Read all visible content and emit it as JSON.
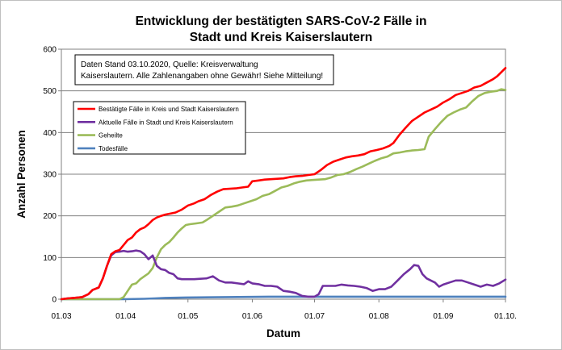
{
  "chart_data": {
    "type": "line",
    "title_lines": [
      "Entwicklung der bestätigten SARS-CoV-2 Fälle in",
      "Stadt und Kreis Kaiserslautern"
    ],
    "xlabel": "Datum",
    "ylabel": "Anzahl Personen",
    "ylim": [
      0,
      600
    ],
    "yticks": [
      0,
      100,
      200,
      300,
      400,
      500,
      600
    ],
    "xlim": [
      0,
      214
    ],
    "xticks": [
      {
        "label": "01.03",
        "day": 0
      },
      {
        "label": "01.04",
        "day": 31
      },
      {
        "label": "01.05",
        "day": 61
      },
      {
        "label": "01.06",
        "day": 92
      },
      {
        "label": "01.07",
        "day": 122
      },
      {
        "label": "01.08",
        "day": 153
      },
      {
        "label": "01.09",
        "day": 184
      },
      {
        "label": "01.10.",
        "day": 214
      }
    ],
    "grid": "horizontal",
    "note_lines": [
      "Daten Stand 03.10.2020, Quelle: Kreisverwaltung",
      "Kaiserslautern. Alle Zahlenangaben ohne Gewähr! Siehe Mitteilung!"
    ],
    "legend_position": "top-left",
    "series": [
      {
        "name": "Bestätigte Fälle in Kreis und Stadt Kaiserslautern",
        "color": "#ff0000",
        "points": [
          [
            0,
            0
          ],
          [
            3,
            2
          ],
          [
            6,
            3
          ],
          [
            10,
            5
          ],
          [
            13,
            12
          ],
          [
            15,
            22
          ],
          [
            18,
            28
          ],
          [
            20,
            50
          ],
          [
            22,
            80
          ],
          [
            24,
            108
          ],
          [
            26,
            115
          ],
          [
            28,
            118
          ],
          [
            30,
            130
          ],
          [
            32,
            142
          ],
          [
            34,
            148
          ],
          [
            36,
            160
          ],
          [
            38,
            168
          ],
          [
            40,
            172
          ],
          [
            42,
            180
          ],
          [
            44,
            190
          ],
          [
            46,
            196
          ],
          [
            48,
            200
          ],
          [
            50,
            203
          ],
          [
            52,
            205
          ],
          [
            55,
            208
          ],
          [
            58,
            215
          ],
          [
            61,
            225
          ],
          [
            64,
            230
          ],
          [
            66,
            235
          ],
          [
            69,
            240
          ],
          [
            72,
            250
          ],
          [
            75,
            258
          ],
          [
            78,
            264
          ],
          [
            81,
            265
          ],
          [
            84,
            266
          ],
          [
            87,
            268
          ],
          [
            90,
            270
          ],
          [
            92,
            283
          ],
          [
            95,
            285
          ],
          [
            98,
            287
          ],
          [
            101,
            288
          ],
          [
            104,
            289
          ],
          [
            107,
            290
          ],
          [
            110,
            293
          ],
          [
            113,
            295
          ],
          [
            116,
            296
          ],
          [
            119,
            298
          ],
          [
            122,
            300
          ],
          [
            125,
            310
          ],
          [
            128,
            322
          ],
          [
            131,
            330
          ],
          [
            134,
            335
          ],
          [
            137,
            340
          ],
          [
            140,
            343
          ],
          [
            143,
            345
          ],
          [
            146,
            348
          ],
          [
            149,
            355
          ],
          [
            152,
            358
          ],
          [
            155,
            362
          ],
          [
            158,
            368
          ],
          [
            160,
            375
          ],
          [
            163,
            395
          ],
          [
            166,
            412
          ],
          [
            169,
            428
          ],
          [
            172,
            438
          ],
          [
            175,
            448
          ],
          [
            178,
            455
          ],
          [
            181,
            462
          ],
          [
            184,
            472
          ],
          [
            187,
            480
          ],
          [
            190,
            490
          ],
          [
            193,
            495
          ],
          [
            196,
            500
          ],
          [
            199,
            508
          ],
          [
            202,
            512
          ],
          [
            205,
            520
          ],
          [
            208,
            528
          ],
          [
            210,
            535
          ],
          [
            212,
            545
          ],
          [
            214,
            555
          ]
        ]
      },
      {
        "name": "Aktuelle Fälle in Stadt und Kreis Kaiserslautern",
        "color": "#7030a0",
        "points": [
          [
            0,
            0
          ],
          [
            3,
            2
          ],
          [
            6,
            3
          ],
          [
            10,
            5
          ],
          [
            13,
            12
          ],
          [
            15,
            22
          ],
          [
            18,
            28
          ],
          [
            20,
            50
          ],
          [
            22,
            80
          ],
          [
            24,
            105
          ],
          [
            26,
            113
          ],
          [
            28,
            114
          ],
          [
            30,
            116
          ],
          [
            32,
            114
          ],
          [
            34,
            115
          ],
          [
            36,
            117
          ],
          [
            38,
            115
          ],
          [
            40,
            108
          ],
          [
            42,
            96
          ],
          [
            44,
            105
          ],
          [
            46,
            80
          ],
          [
            48,
            72
          ],
          [
            50,
            70
          ],
          [
            52,
            63
          ],
          [
            54,
            60
          ],
          [
            56,
            50
          ],
          [
            58,
            48
          ],
          [
            61,
            48
          ],
          [
            64,
            48
          ],
          [
            67,
            49
          ],
          [
            70,
            50
          ],
          [
            73,
            55
          ],
          [
            76,
            45
          ],
          [
            79,
            40
          ],
          [
            82,
            40
          ],
          [
            85,
            38
          ],
          [
            88,
            36
          ],
          [
            90,
            43
          ],
          [
            92,
            38
          ],
          [
            95,
            36
          ],
          [
            98,
            32
          ],
          [
            101,
            32
          ],
          [
            104,
            30
          ],
          [
            107,
            20
          ],
          [
            110,
            18
          ],
          [
            113,
            15
          ],
          [
            116,
            8
          ],
          [
            119,
            6
          ],
          [
            122,
            6
          ],
          [
            124,
            12
          ],
          [
            126,
            32
          ],
          [
            129,
            32
          ],
          [
            132,
            32
          ],
          [
            135,
            35
          ],
          [
            138,
            33
          ],
          [
            141,
            32
          ],
          [
            144,
            30
          ],
          [
            147,
            27
          ],
          [
            150,
            20
          ],
          [
            153,
            24
          ],
          [
            156,
            24
          ],
          [
            159,
            30
          ],
          [
            162,
            45
          ],
          [
            165,
            60
          ],
          [
            168,
            72
          ],
          [
            170,
            82
          ],
          [
            172,
            80
          ],
          [
            174,
            60
          ],
          [
            176,
            50
          ],
          [
            178,
            45
          ],
          [
            180,
            40
          ],
          [
            182,
            30
          ],
          [
            184,
            35
          ],
          [
            187,
            40
          ],
          [
            190,
            45
          ],
          [
            193,
            45
          ],
          [
            196,
            40
          ],
          [
            199,
            35
          ],
          [
            202,
            30
          ],
          [
            205,
            35
          ],
          [
            208,
            32
          ],
          [
            211,
            38
          ],
          [
            214,
            47
          ]
        ]
      },
      {
        "name": "Geheilte",
        "color": "#9bbb59",
        "points": [
          [
            0,
            0
          ],
          [
            10,
            0
          ],
          [
            20,
            0
          ],
          [
            25,
            0
          ],
          [
            28,
            0
          ],
          [
            30,
            5
          ],
          [
            32,
            20
          ],
          [
            34,
            35
          ],
          [
            36,
            38
          ],
          [
            38,
            48
          ],
          [
            40,
            55
          ],
          [
            42,
            62
          ],
          [
            44,
            75
          ],
          [
            46,
            100
          ],
          [
            48,
            120
          ],
          [
            50,
            130
          ],
          [
            52,
            137
          ],
          [
            54,
            148
          ],
          [
            56,
            160
          ],
          [
            58,
            170
          ],
          [
            60,
            178
          ],
          [
            62,
            180
          ],
          [
            65,
            182
          ],
          [
            68,
            184
          ],
          [
            70,
            190
          ],
          [
            73,
            200
          ],
          [
            76,
            210
          ],
          [
            79,
            220
          ],
          [
            82,
            222
          ],
          [
            85,
            225
          ],
          [
            88,
            230
          ],
          [
            91,
            235
          ],
          [
            94,
            240
          ],
          [
            97,
            248
          ],
          [
            100,
            252
          ],
          [
            103,
            260
          ],
          [
            106,
            268
          ],
          [
            109,
            272
          ],
          [
            112,
            278
          ],
          [
            115,
            282
          ],
          [
            118,
            285
          ],
          [
            121,
            286
          ],
          [
            124,
            287
          ],
          [
            127,
            288
          ],
          [
            130,
            292
          ],
          [
            133,
            298
          ],
          [
            136,
            300
          ],
          [
            139,
            305
          ],
          [
            142,
            312
          ],
          [
            145,
            318
          ],
          [
            148,
            325
          ],
          [
            151,
            332
          ],
          [
            154,
            338
          ],
          [
            157,
            342
          ],
          [
            160,
            350
          ],
          [
            163,
            352
          ],
          [
            166,
            355
          ],
          [
            169,
            357
          ],
          [
            172,
            358
          ],
          [
            175,
            360
          ],
          [
            177,
            390
          ],
          [
            180,
            408
          ],
          [
            183,
            425
          ],
          [
            186,
            440
          ],
          [
            189,
            448
          ],
          [
            192,
            455
          ],
          [
            195,
            460
          ],
          [
            198,
            475
          ],
          [
            201,
            488
          ],
          [
            204,
            495
          ],
          [
            207,
            498
          ],
          [
            210,
            500
          ],
          [
            212,
            504
          ],
          [
            214,
            502
          ]
        ]
      },
      {
        "name": "Todesfälle",
        "color": "#4f81bd",
        "points": [
          [
            0,
            0
          ],
          [
            30,
            0
          ],
          [
            40,
            1
          ],
          [
            45,
            2
          ],
          [
            50,
            3
          ],
          [
            60,
            4
          ],
          [
            80,
            5
          ],
          [
            100,
            6
          ],
          [
            140,
            6
          ],
          [
            214,
            6
          ]
        ]
      }
    ]
  }
}
